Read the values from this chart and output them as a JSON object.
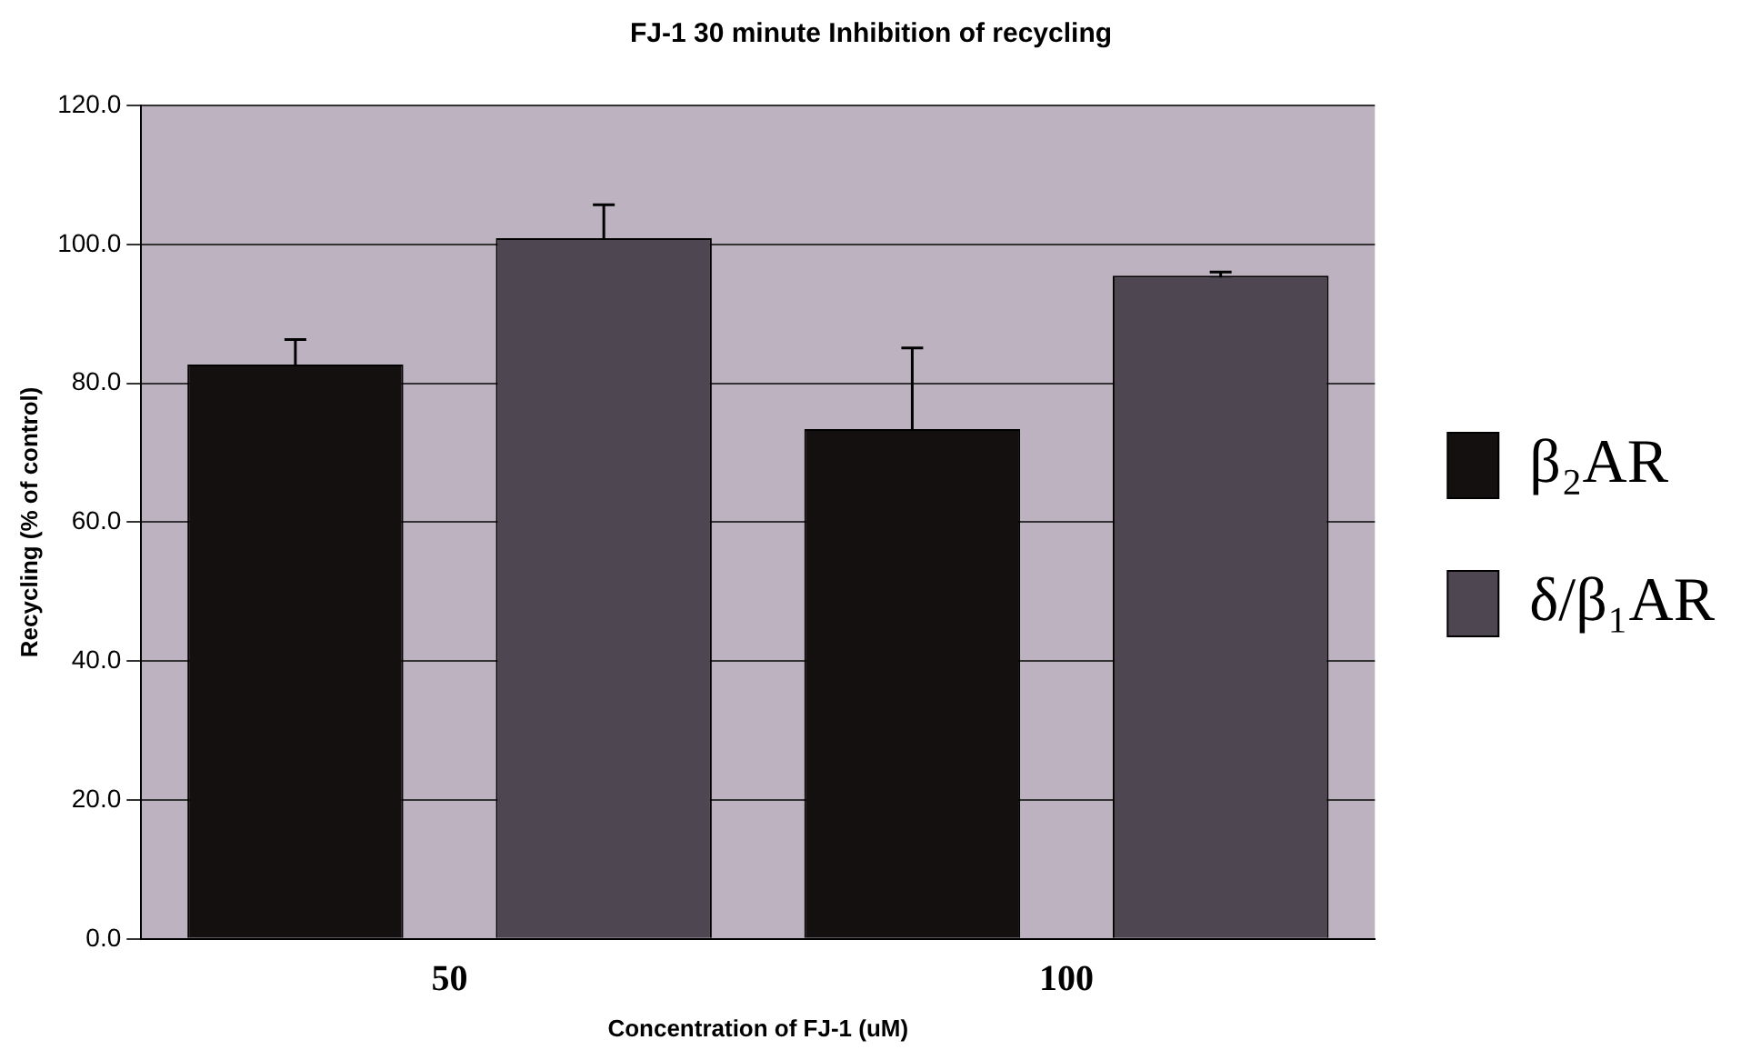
{
  "chart_data": {
    "type": "bar",
    "title": "FJ-1 30 minute Inhibition of recycling",
    "xlabel": "Concentration of FJ-1 (uM)",
    "ylabel": "Recycling (% of control)",
    "categories": [
      "50",
      "100"
    ],
    "series": [
      {
        "name": "β₂AR",
        "color": "#141010",
        "values": [
          82.7,
          73.4
        ],
        "errors": [
          3.6,
          11.7
        ]
      },
      {
        "name": "δ/β₁AR",
        "color": "#4e4650",
        "values": [
          100.9,
          95.5
        ],
        "errors": [
          4.8,
          0.5
        ]
      }
    ],
    "ylim": [
      0,
      120
    ],
    "yticks": [
      {
        "value": 0,
        "label": "0.0"
      },
      {
        "value": 20,
        "label": "20.0"
      },
      {
        "value": 40,
        "label": "40.0"
      },
      {
        "value": 60,
        "label": "60.0"
      },
      {
        "value": 80,
        "label": "80.0"
      },
      {
        "value": 100,
        "label": "100.0"
      },
      {
        "value": 120,
        "label": "120.0"
      }
    ],
    "grid": "y",
    "legend": "right"
  }
}
